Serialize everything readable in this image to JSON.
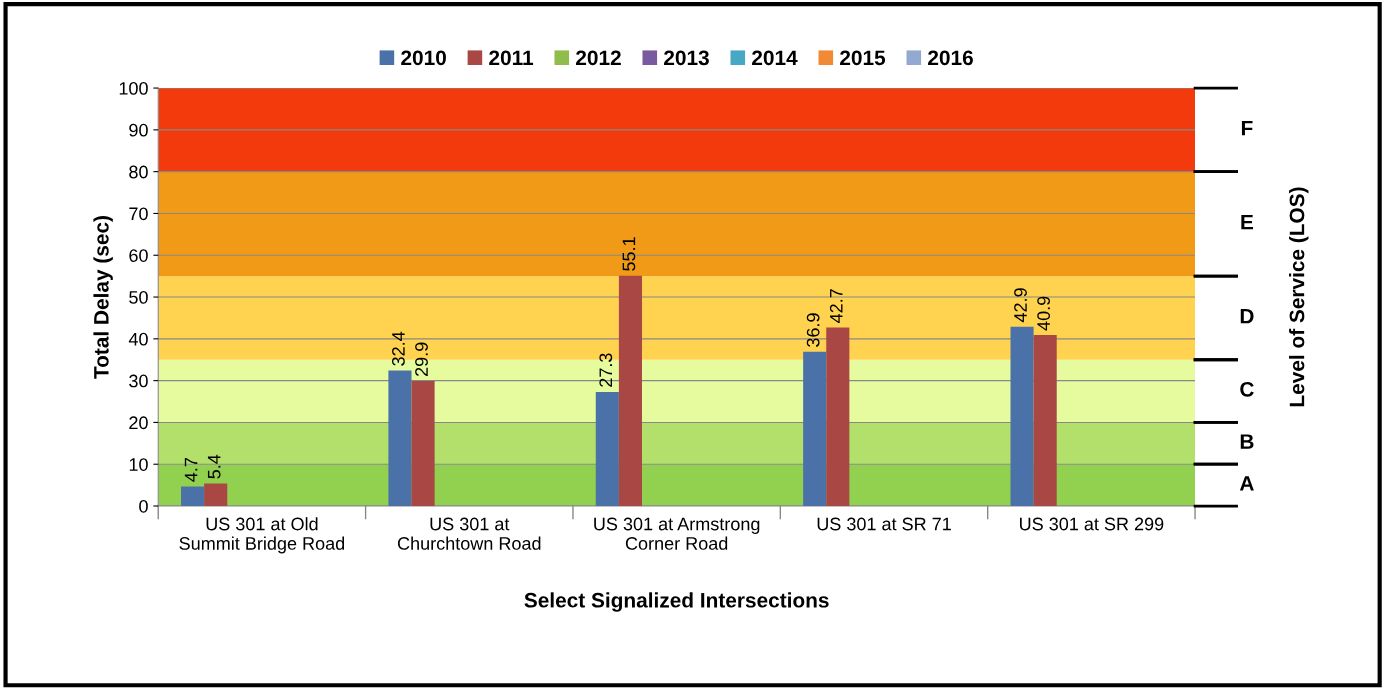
{
  "chart_data": {
    "type": "bar",
    "xlabel": "Select Signalized Intersections",
    "ylabel": "Total Delay (sec)",
    "y2label": "Level of Service (LOS)",
    "categories": [
      "US 301 at Old\nSummit Bridge Road",
      "US 301 at\nChurchtown Road",
      "US 301 at Armstrong\nCorner Road",
      "US 301 at SR 71",
      "US 301 at SR 299"
    ],
    "series": [
      {
        "name": "2010",
        "color": "#4a72a8",
        "values": [
          4.7,
          32.4,
          27.3,
          36.9,
          42.9
        ]
      },
      {
        "name": "2011",
        "color": "#a94744",
        "values": [
          5.4,
          29.9,
          55.1,
          42.7,
          40.9
        ]
      },
      {
        "name": "2012",
        "color": "#8fbc4a",
        "values": [
          null,
          null,
          null,
          null,
          null
        ]
      },
      {
        "name": "2013",
        "color": "#7a5a9e",
        "values": [
          null,
          null,
          null,
          null,
          null
        ]
      },
      {
        "name": "2014",
        "color": "#47a8c4",
        "values": [
          null,
          null,
          null,
          null,
          null
        ]
      },
      {
        "name": "2015",
        "color": "#f08a35",
        "values": [
          null,
          null,
          null,
          null,
          null
        ]
      },
      {
        "name": "2016",
        "color": "#93a9d2",
        "values": [
          null,
          null,
          null,
          null,
          null
        ]
      }
    ],
    "ylim": [
      0,
      100
    ],
    "yticks": [
      0,
      10,
      20,
      30,
      40,
      50,
      60,
      70,
      80,
      90,
      100
    ],
    "bands": [
      {
        "axis": "y",
        "from": 0,
        "to": 10,
        "label": "A",
        "color": "#92d050"
      },
      {
        "axis": "y",
        "from": 10,
        "to": 20,
        "label": "B",
        "color": "#b3e06a"
      },
      {
        "axis": "y",
        "from": 20,
        "to": 35,
        "label": "C",
        "color": "#e6fb9e"
      },
      {
        "axis": "y",
        "from": 35,
        "to": 55,
        "label": "D",
        "color": "#ffd34f"
      },
      {
        "axis": "y",
        "from": 55,
        "to": 80,
        "label": "E",
        "color": "#f09a18"
      },
      {
        "axis": "y",
        "from": 80,
        "to": 100,
        "label": "F",
        "color": "#f23a0c"
      }
    ],
    "data_labels": true,
    "grid": "y",
    "legend": "top"
  }
}
